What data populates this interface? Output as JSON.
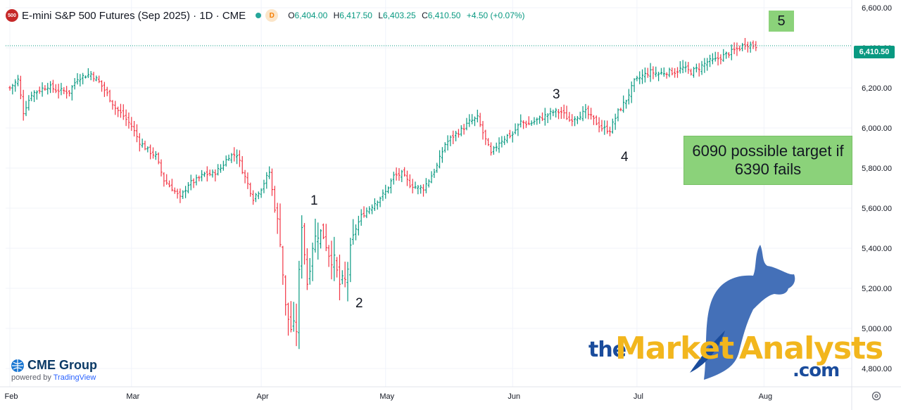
{
  "header": {
    "symbol_badge": "500",
    "title": "E-mini S&P 500 Futures (Sep 2025) · 1D · CME",
    "d_badge": "D",
    "open_label": "O",
    "open": "6,404.00",
    "high_label": "H",
    "high": "6,417.50",
    "low_label": "L",
    "low": "6,403.25",
    "close_label": "C",
    "close": "6,410.50",
    "change": "+4.50 (+0.07%)"
  },
  "current_price_tag": "6,410.50",
  "annotations": {
    "wave_1": "1",
    "wave_2": "2",
    "wave_3": "3",
    "wave_4": "4",
    "wave_5": "5",
    "target_note": "6090 possible target if 6390 fails"
  },
  "branding": {
    "cme": "CME Group",
    "powered_by": "powered by",
    "tradingview": "TradingView",
    "brand_the": "the",
    "brand_market": "Market",
    "brand_analysts": "Analysts",
    "brand_com": ".com"
  },
  "colors": {
    "up": "#089981",
    "down": "#f23645",
    "grid": "#f0f3fa",
    "current_line": "#089981"
  },
  "icons": {
    "settings": "gear-icon"
  },
  "chart_data": {
    "type": "ohlc",
    "y_axis": {
      "min": 4750,
      "max": 6620,
      "ticks": [
        4800,
        5000,
        5200,
        5400,
        5600,
        5800,
        6000,
        6200,
        6400,
        6600
      ],
      "tick_labels": [
        "4,800.00",
        "5,000.00",
        "5,200.00",
        "5,400.00",
        "5,600.00",
        "5,800.00",
        "6,000.00",
        "6,200.00",
        "6,400.00",
        "6,600.00"
      ]
    },
    "x_axis": {
      "labels": [
        "Feb",
        "Mar",
        "Apr",
        "May",
        "Jun",
        "Jul",
        "Aug"
      ],
      "label_bar_index": [
        0,
        45,
        93,
        139,
        186,
        232,
        279
      ]
    },
    "current_price": 6410.5,
    "waves": [
      {
        "label": "1",
        "bar_index": 108,
        "price": 5561
      },
      {
        "label": "2",
        "bar_index": 124,
        "price": 5164
      },
      {
        "label": "3",
        "bar_index": 199,
        "price": 6142
      },
      {
        "label": "4",
        "bar_index": 222,
        "price": 5959
      },
      {
        "label": "5",
        "bar_index": 272,
        "price": 6450
      }
    ],
    "keypoints": [
      [
        0,
        6200
      ],
      [
        3,
        6240
      ],
      [
        5,
        6080
      ],
      [
        8,
        6170
      ],
      [
        11,
        6190
      ],
      [
        14,
        6210
      ],
      [
        17,
        6190
      ],
      [
        22,
        6180
      ],
      [
        25,
        6250
      ],
      [
        30,
        6270
      ],
      [
        33,
        6230
      ],
      [
        36,
        6170
      ],
      [
        39,
        6100
      ],
      [
        42,
        6060
      ],
      [
        45,
        6010
      ],
      [
        48,
        5930
      ],
      [
        51,
        5890
      ],
      [
        54,
        5860
      ],
      [
        57,
        5740
      ],
      [
        60,
        5700
      ],
      [
        63,
        5650
      ],
      [
        66,
        5720
      ],
      [
        69,
        5740
      ],
      [
        72,
        5770
      ],
      [
        75,
        5770
      ],
      [
        78,
        5800
      ],
      [
        81,
        5860
      ],
      [
        84,
        5870
      ],
      [
        86,
        5790
      ],
      [
        88,
        5720
      ],
      [
        90,
        5650
      ],
      [
        93,
        5700
      ],
      [
        96,
        5780
      ],
      [
        98,
        5600
      ],
      [
        100,
        5450
      ],
      [
        102,
        5100
      ],
      [
        104,
        5000
      ],
      [
        106,
        5000
      ],
      [
        108,
        5530
      ],
      [
        110,
        5230
      ],
      [
        112,
        5420
      ],
      [
        114,
        5480
      ],
      [
        116,
        5470
      ],
      [
        118,
        5380
      ],
      [
        120,
        5330
      ],
      [
        122,
        5220
      ],
      [
        124,
        5230
      ],
      [
        126,
        5380
      ],
      [
        128,
        5500
      ],
      [
        130,
        5560
      ],
      [
        133,
        5600
      ],
      [
        136,
        5640
      ],
      [
        139,
        5680
      ],
      [
        142,
        5760
      ],
      [
        145,
        5770
      ],
      [
        148,
        5720
      ],
      [
        151,
        5700
      ],
      [
        153,
        5700
      ],
      [
        155,
        5740
      ],
      [
        158,
        5810
      ],
      [
        161,
        5920
      ],
      [
        164,
        5960
      ],
      [
        167,
        5990
      ],
      [
        170,
        6030
      ],
      [
        173,
        6050
      ],
      [
        176,
        5940
      ],
      [
        178,
        5870
      ],
      [
        181,
        5930
      ],
      [
        184,
        5960
      ],
      [
        186,
        5970
      ],
      [
        189,
        6030
      ],
      [
        192,
        6020
      ],
      [
        195,
        6040
      ],
      [
        198,
        6060
      ],
      [
        201,
        6080
      ],
      [
        204,
        6080
      ],
      [
        207,
        6040
      ],
      [
        210,
        6060
      ],
      [
        213,
        6080
      ],
      [
        216,
        6040
      ],
      [
        219,
        6000
      ],
      [
        222,
        5990
      ],
      [
        225,
        6080
      ],
      [
        228,
        6140
      ],
      [
        231,
        6230
      ],
      [
        234,
        6260
      ],
      [
        237,
        6280
      ],
      [
        240,
        6270
      ],
      [
        243,
        6280
      ],
      [
        246,
        6280
      ],
      [
        249,
        6300
      ],
      [
        252,
        6280
      ],
      [
        255,
        6300
      ],
      [
        258,
        6330
      ],
      [
        261,
        6340
      ],
      [
        264,
        6360
      ],
      [
        267,
        6380
      ],
      [
        270,
        6400
      ],
      [
        272,
        6420
      ],
      [
        274,
        6415
      ],
      [
        276,
        6410
      ]
    ]
  }
}
